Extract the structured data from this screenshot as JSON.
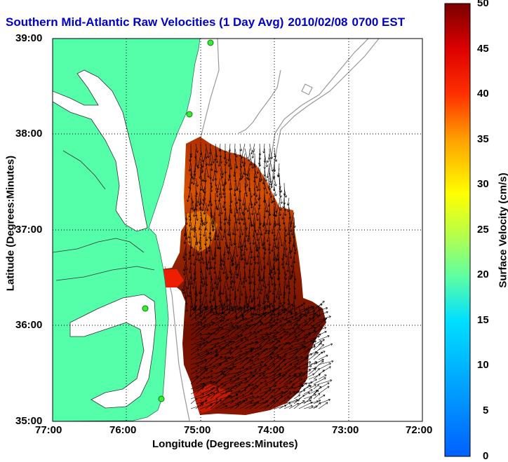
{
  "title": {
    "text": "Southern Mid-Atlantic Raw Velocities (1 Day Avg)",
    "date": "2010/02/08",
    "time_suffix": "0700 EST"
  },
  "axes": {
    "xlabel": "Longitude (Degrees:Minutes)",
    "ylabel": "Latitude (Degrees:Minutes)",
    "xticks": [
      "77:00",
      "76:00",
      "75:00",
      "74:00",
      "73:00",
      "72:00"
    ],
    "yticks": [
      "39:00",
      "38:00",
      "37:00",
      "36:00",
      "35:00"
    ],
    "grid": "dotted"
  },
  "colorbar": {
    "label": "Surface Velocity (cm/s)",
    "ticks": [
      "50",
      "45",
      "40",
      "35",
      "30",
      "25",
      "20",
      "15",
      "10",
      "5",
      "0"
    ],
    "range": [
      0,
      50
    ],
    "colormap": "jet"
  },
  "colors": {
    "title": "#0000cc",
    "land": "#55ffaa",
    "bathymetry": "#999999",
    "station": "#33ee33",
    "vectors": "#000000"
  },
  "legend": "none"
}
